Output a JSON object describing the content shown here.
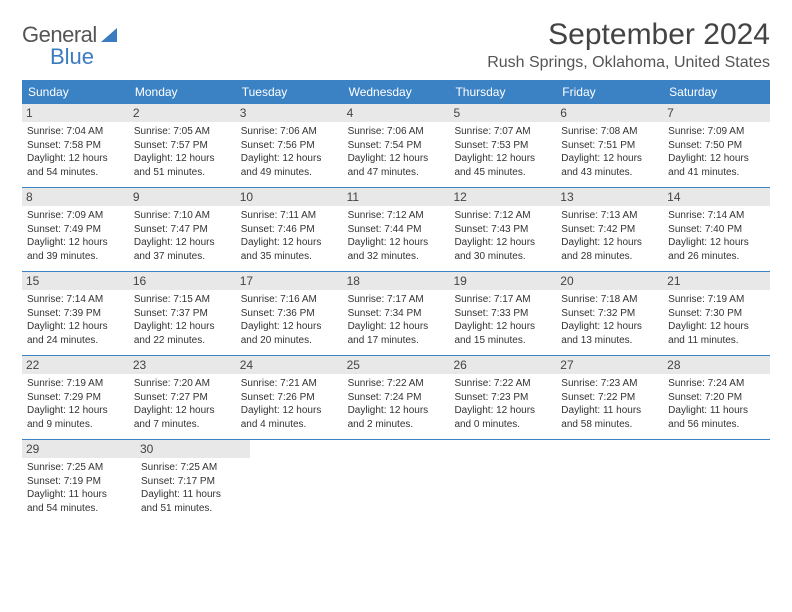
{
  "logo": {
    "text1": "General",
    "text2": "Blue"
  },
  "title": "September 2024",
  "location": "Rush Springs, Oklahoma, United States",
  "colors": {
    "header_bg": "#3b82c4",
    "header_text": "#ffffff",
    "daynum_bg": "#e8e8e8",
    "border": "#3b82c4",
    "logo_blue": "#3b7bbf"
  },
  "day_headers": [
    "Sunday",
    "Monday",
    "Tuesday",
    "Wednesday",
    "Thursday",
    "Friday",
    "Saturday"
  ],
  "weeks": [
    [
      {
        "n": "1",
        "sr": "7:04 AM",
        "ss": "7:58 PM",
        "dh": "12",
        "dm": "54"
      },
      {
        "n": "2",
        "sr": "7:05 AM",
        "ss": "7:57 PM",
        "dh": "12",
        "dm": "51"
      },
      {
        "n": "3",
        "sr": "7:06 AM",
        "ss": "7:56 PM",
        "dh": "12",
        "dm": "49"
      },
      {
        "n": "4",
        "sr": "7:06 AM",
        "ss": "7:54 PM",
        "dh": "12",
        "dm": "47"
      },
      {
        "n": "5",
        "sr": "7:07 AM",
        "ss": "7:53 PM",
        "dh": "12",
        "dm": "45"
      },
      {
        "n": "6",
        "sr": "7:08 AM",
        "ss": "7:51 PM",
        "dh": "12",
        "dm": "43"
      },
      {
        "n": "7",
        "sr": "7:09 AM",
        "ss": "7:50 PM",
        "dh": "12",
        "dm": "41"
      }
    ],
    [
      {
        "n": "8",
        "sr": "7:09 AM",
        "ss": "7:49 PM",
        "dh": "12",
        "dm": "39"
      },
      {
        "n": "9",
        "sr": "7:10 AM",
        "ss": "7:47 PM",
        "dh": "12",
        "dm": "37"
      },
      {
        "n": "10",
        "sr": "7:11 AM",
        "ss": "7:46 PM",
        "dh": "12",
        "dm": "35"
      },
      {
        "n": "11",
        "sr": "7:12 AM",
        "ss": "7:44 PM",
        "dh": "12",
        "dm": "32"
      },
      {
        "n": "12",
        "sr": "7:12 AM",
        "ss": "7:43 PM",
        "dh": "12",
        "dm": "30"
      },
      {
        "n": "13",
        "sr": "7:13 AM",
        "ss": "7:42 PM",
        "dh": "12",
        "dm": "28"
      },
      {
        "n": "14",
        "sr": "7:14 AM",
        "ss": "7:40 PM",
        "dh": "12",
        "dm": "26"
      }
    ],
    [
      {
        "n": "15",
        "sr": "7:14 AM",
        "ss": "7:39 PM",
        "dh": "12",
        "dm": "24"
      },
      {
        "n": "16",
        "sr": "7:15 AM",
        "ss": "7:37 PM",
        "dh": "12",
        "dm": "22"
      },
      {
        "n": "17",
        "sr": "7:16 AM",
        "ss": "7:36 PM",
        "dh": "12",
        "dm": "20"
      },
      {
        "n": "18",
        "sr": "7:17 AM",
        "ss": "7:34 PM",
        "dh": "12",
        "dm": "17"
      },
      {
        "n": "19",
        "sr": "7:17 AM",
        "ss": "7:33 PM",
        "dh": "12",
        "dm": "15"
      },
      {
        "n": "20",
        "sr": "7:18 AM",
        "ss": "7:32 PM",
        "dh": "12",
        "dm": "13"
      },
      {
        "n": "21",
        "sr": "7:19 AM",
        "ss": "7:30 PM",
        "dh": "12",
        "dm": "11"
      }
    ],
    [
      {
        "n": "22",
        "sr": "7:19 AM",
        "ss": "7:29 PM",
        "dh": "12",
        "dm": "9"
      },
      {
        "n": "23",
        "sr": "7:20 AM",
        "ss": "7:27 PM",
        "dh": "12",
        "dm": "7"
      },
      {
        "n": "24",
        "sr": "7:21 AM",
        "ss": "7:26 PM",
        "dh": "12",
        "dm": "4"
      },
      {
        "n": "25",
        "sr": "7:22 AM",
        "ss": "7:24 PM",
        "dh": "12",
        "dm": "2"
      },
      {
        "n": "26",
        "sr": "7:22 AM",
        "ss": "7:23 PM",
        "dh": "12",
        "dm": "0"
      },
      {
        "n": "27",
        "sr": "7:23 AM",
        "ss": "7:22 PM",
        "dh": "11",
        "dm": "58"
      },
      {
        "n": "28",
        "sr": "7:24 AM",
        "ss": "7:20 PM",
        "dh": "11",
        "dm": "56"
      }
    ],
    [
      {
        "n": "29",
        "sr": "7:25 AM",
        "ss": "7:19 PM",
        "dh": "11",
        "dm": "54"
      },
      {
        "n": "30",
        "sr": "7:25 AM",
        "ss": "7:17 PM",
        "dh": "11",
        "dm": "51"
      },
      null,
      null,
      null,
      null,
      null
    ]
  ]
}
